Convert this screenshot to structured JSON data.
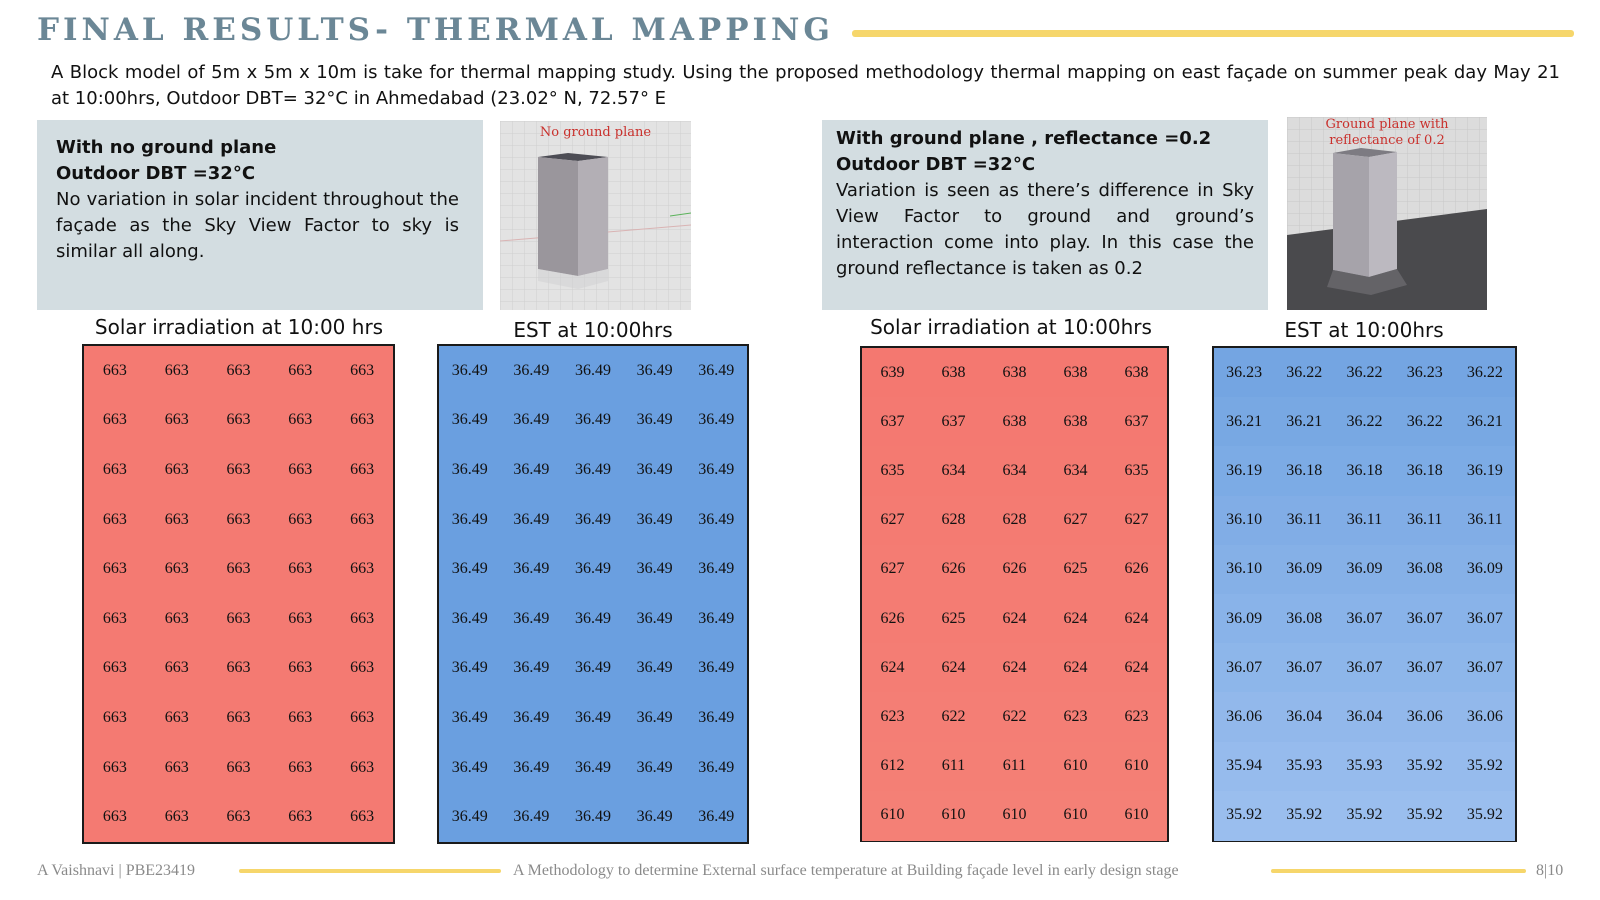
{
  "title": "FINAL RESULTS- THERMAL MAPPING",
  "intro": "A Block model of 5m x 5m x 10m is take for thermal mapping study. Using the proposed methodology thermal mapping on east façade on summer peak day May 21 at 10:00hrs, Outdoor DBT= 32°C in Ahmedabad (23.02° N, 72.57° E",
  "left_case": {
    "heading1": "With no ground plane",
    "heading2": "Outdoor DBT =32°C",
    "body": "No variation in solar incident throughout the façade as the Sky View Factor to sky is similar all along.",
    "image_caption": "No ground plane",
    "irr_title": "Solar irradiation at 10:00 hrs",
    "est_title": "EST at 10:00hrs",
    "irradiation": [
      [
        "663",
        "663",
        "663",
        "663",
        "663"
      ],
      [
        "663",
        "663",
        "663",
        "663",
        "663"
      ],
      [
        "663",
        "663",
        "663",
        "663",
        "663"
      ],
      [
        "663",
        "663",
        "663",
        "663",
        "663"
      ],
      [
        "663",
        "663",
        "663",
        "663",
        "663"
      ],
      [
        "663",
        "663",
        "663",
        "663",
        "663"
      ],
      [
        "663",
        "663",
        "663",
        "663",
        "663"
      ],
      [
        "663",
        "663",
        "663",
        "663",
        "663"
      ],
      [
        "663",
        "663",
        "663",
        "663",
        "663"
      ],
      [
        "663",
        "663",
        "663",
        "663",
        "663"
      ]
    ],
    "est": [
      [
        "36.49",
        "36.49",
        "36.49",
        "36.49",
        "36.49"
      ],
      [
        "36.49",
        "36.49",
        "36.49",
        "36.49",
        "36.49"
      ],
      [
        "36.49",
        "36.49",
        "36.49",
        "36.49",
        "36.49"
      ],
      [
        "36.49",
        "36.49",
        "36.49",
        "36.49",
        "36.49"
      ],
      [
        "36.49",
        "36.49",
        "36.49",
        "36.49",
        "36.49"
      ],
      [
        "36.49",
        "36.49",
        "36.49",
        "36.49",
        "36.49"
      ],
      [
        "36.49",
        "36.49",
        "36.49",
        "36.49",
        "36.49"
      ],
      [
        "36.49",
        "36.49",
        "36.49",
        "36.49",
        "36.49"
      ],
      [
        "36.49",
        "36.49",
        "36.49",
        "36.49",
        "36.49"
      ],
      [
        "36.49",
        "36.49",
        "36.49",
        "36.49",
        "36.49"
      ]
    ]
  },
  "right_case": {
    "heading1": "With ground plane , reflectance =0.2",
    "heading2": "Outdoor DBT =32°C",
    "body": "Variation is seen as there’s difference in Sky View Factor to ground and ground’s interaction come into play. In this case the ground reflectance is taken as 0.2",
    "image_caption": "Ground plane with reflectance of 0.2",
    "irr_title": "Solar irradiation at 10:00hrs",
    "est_title": "EST at 10:00hrs",
    "irradiation": [
      [
        "639",
        "638",
        "638",
        "638",
        "638"
      ],
      [
        "637",
        "637",
        "638",
        "638",
        "637"
      ],
      [
        "635",
        "634",
        "634",
        "634",
        "635"
      ],
      [
        "627",
        "628",
        "628",
        "627",
        "627"
      ],
      [
        "627",
        "626",
        "626",
        "625",
        "626"
      ],
      [
        "626",
        "625",
        "624",
        "624",
        "624"
      ],
      [
        "624",
        "624",
        "624",
        "624",
        "624"
      ],
      [
        "623",
        "622",
        "622",
        "623",
        "623"
      ],
      [
        "612",
        "611",
        "611",
        "610",
        "610"
      ],
      [
        "610",
        "610",
        "610",
        "610",
        "610"
      ]
    ],
    "est": [
      [
        "36.23",
        "36.22",
        "36.22",
        "36.23",
        "36.22"
      ],
      [
        "36.21",
        "36.21",
        "36.22",
        "36.22",
        "36.21"
      ],
      [
        "36.19",
        "36.18",
        "36.18",
        "36.18",
        "36.19"
      ],
      [
        "36.10",
        "36.11",
        "36.11",
        "36.11",
        "36.11"
      ],
      [
        "36.10",
        "36.09",
        "36.09",
        "36.08",
        "36.09"
      ],
      [
        "36.09",
        "36.08",
        "36.07",
        "36.07",
        "36.07"
      ],
      [
        "36.07",
        "36.07",
        "36.07",
        "36.07",
        "36.07"
      ],
      [
        "36.06",
        "36.04",
        "36.04",
        "36.06",
        "36.06"
      ],
      [
        "35.94",
        "35.93",
        "35.93",
        "35.92",
        "35.92"
      ],
      [
        "35.92",
        "35.92",
        "35.92",
        "35.92",
        "35.92"
      ]
    ]
  },
  "footer": {
    "author": "A Vaishnavi | PBE23419",
    "subtitle": "A Methodology to determine External surface temperature at Building façade level in early design stage",
    "page": "8|10"
  },
  "colors": {
    "title": "#6b8796",
    "accent_rule": "#f6d66b",
    "info_box": "#d3dde1",
    "irradiation_fill": "#f47a72",
    "est_fill": "#6a9fe0"
  }
}
